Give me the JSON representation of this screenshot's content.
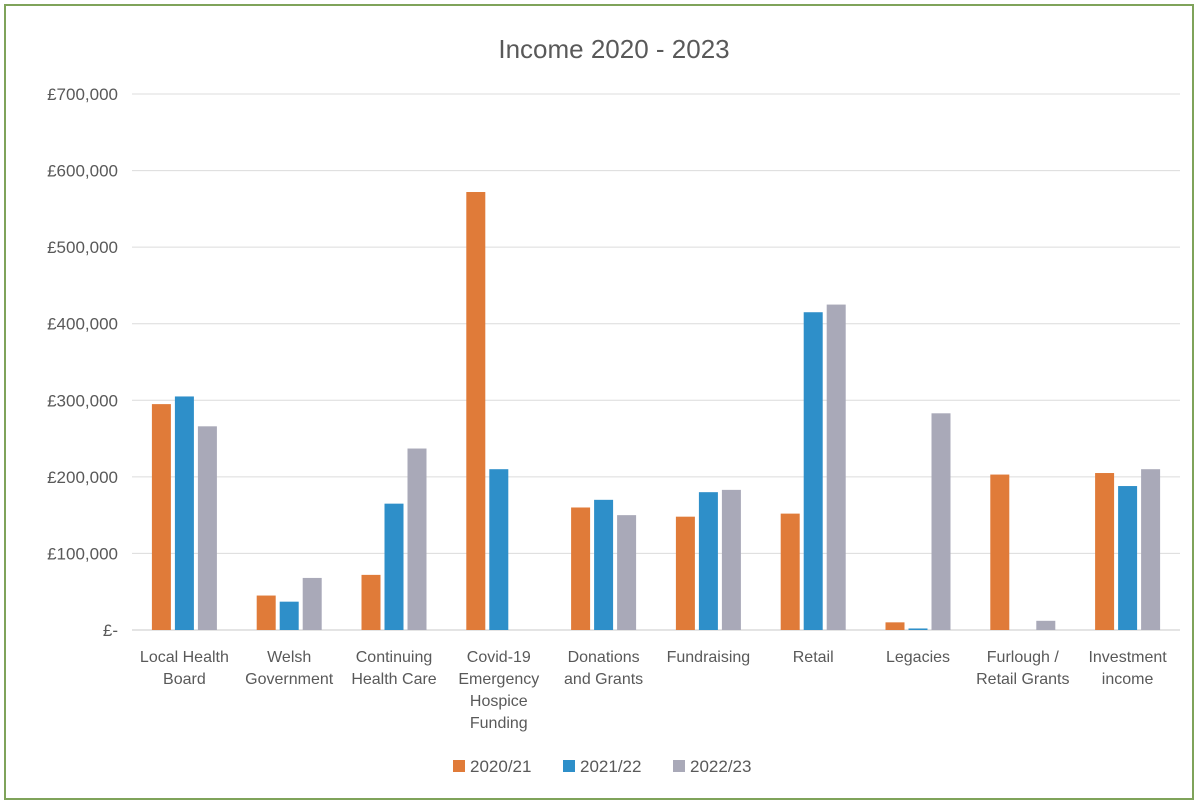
{
  "chart_data": {
    "type": "bar",
    "title": "Income 2020 - 2023",
    "xlabel": "",
    "ylabel": "",
    "ylim": [
      0,
      700000
    ],
    "yticks": [
      0,
      100000,
      200000,
      300000,
      400000,
      500000,
      600000,
      700000
    ],
    "ytick_labels": [
      "£-",
      "£100,000",
      "£200,000",
      "£300,000",
      "£400,000",
      "£500,000",
      "£600,000",
      "£700,000"
    ],
    "categories": [
      [
        "Local Health",
        "Board"
      ],
      [
        "Welsh",
        "Government"
      ],
      [
        "Continuing",
        "Health Care"
      ],
      [
        "Covid-19",
        "Emergency",
        "Hospice",
        "Funding"
      ],
      [
        "Donations",
        "and Grants"
      ],
      [
        "Fundraising"
      ],
      [
        "Retail"
      ],
      [
        "Legacies"
      ],
      [
        "Furlough /",
        "Retail Grants"
      ],
      [
        "Investment",
        "income"
      ]
    ],
    "series": [
      {
        "name": "2020/21",
        "color": "#e07b39",
        "values": [
          295000,
          45000,
          72000,
          572000,
          160000,
          148000,
          152000,
          10000,
          203000,
          205000
        ]
      },
      {
        "name": "2021/22",
        "color": "#2e8fc9",
        "values": [
          305000,
          37000,
          165000,
          210000,
          170000,
          180000,
          415000,
          2000,
          0,
          188000
        ]
      },
      {
        "name": "2022/23",
        "color": "#a9a9b8",
        "values": [
          266000,
          68000,
          237000,
          0,
          150000,
          183000,
          425000,
          283000,
          12000,
          210000
        ]
      }
    ],
    "grid": true,
    "legend_position": "bottom"
  }
}
